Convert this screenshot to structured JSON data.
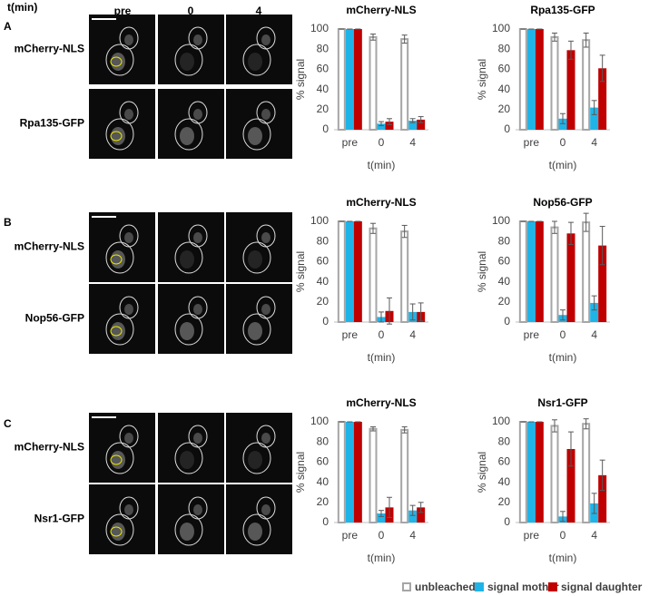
{
  "image_header": {
    "time_label": "t(min)",
    "columns": [
      "pre",
      "0",
      "4"
    ]
  },
  "panels": [
    {
      "label": "A",
      "row_labels": [
        "mCherry-NLS",
        "Rpa135-GFP"
      ]
    },
    {
      "label": "B",
      "row_labels": [
        "mCherry-NLS",
        "Nop56-GFP"
      ]
    },
    {
      "label": "C",
      "row_labels": [
        "mCherry-NLS",
        "Nsr1-GFP"
      ]
    }
  ],
  "chart_data": [
    {
      "type": "bar",
      "title": "mCherry-NLS",
      "categories": [
        "pre",
        "0",
        "4"
      ],
      "xlabel": "t(min)",
      "ylabel": "% signal",
      "ylim": [
        0,
        100
      ],
      "yticks": [
        0,
        20,
        40,
        60,
        80,
        100
      ],
      "series": [
        {
          "name": "unbleached",
          "color": "#a6a6a6",
          "style": "outline",
          "values": [
            100,
            92,
            90
          ],
          "errors": [
            0,
            3,
            4
          ]
        },
        {
          "name": "signal mother",
          "color": "#1fb4e8",
          "values": [
            100,
            6,
            9
          ],
          "errors": [
            0,
            2,
            2
          ]
        },
        {
          "name": "signal daughter",
          "color": "#c00000",
          "values": [
            100,
            8,
            10
          ],
          "errors": [
            0,
            3,
            3
          ]
        }
      ]
    },
    {
      "type": "bar",
      "title": "Rpa135-GFP",
      "categories": [
        "pre",
        "0",
        "4"
      ],
      "xlabel": "t(min)",
      "ylabel": "% signal",
      "ylim": [
        0,
        100
      ],
      "yticks": [
        0,
        20,
        40,
        60,
        80,
        100
      ],
      "series": [
        {
          "name": "unbleached",
          "color": "#a6a6a6",
          "style": "outline",
          "values": [
            100,
            92,
            89
          ],
          "errors": [
            0,
            4,
            7
          ]
        },
        {
          "name": "signal mother",
          "color": "#1fb4e8",
          "values": [
            100,
            11,
            22
          ],
          "errors": [
            0,
            5,
            7
          ]
        },
        {
          "name": "signal daughter",
          "color": "#c00000",
          "values": [
            100,
            79,
            61
          ],
          "errors": [
            0,
            9,
            13
          ]
        }
      ]
    },
    {
      "type": "bar",
      "title": "mCherry-NLS",
      "categories": [
        "pre",
        "0",
        "4"
      ],
      "xlabel": "t(min)",
      "ylabel": "% signal",
      "ylim": [
        0,
        100
      ],
      "yticks": [
        0,
        20,
        40,
        60,
        80,
        100
      ],
      "series": [
        {
          "name": "unbleached",
          "color": "#a6a6a6",
          "style": "outline",
          "values": [
            100,
            93,
            90
          ],
          "errors": [
            0,
            5,
            6
          ]
        },
        {
          "name": "signal mother",
          "color": "#1fb4e8",
          "values": [
            100,
            5,
            10
          ],
          "errors": [
            0,
            5,
            8
          ]
        },
        {
          "name": "signal daughter",
          "color": "#c00000",
          "values": [
            100,
            11,
            10
          ],
          "errors": [
            0,
            13,
            9
          ]
        }
      ]
    },
    {
      "type": "bar",
      "title": "Nop56-GFP",
      "categories": [
        "pre",
        "0",
        "4"
      ],
      "xlabel": "t(min)",
      "ylabel": "% signal",
      "ylim": [
        0,
        100
      ],
      "yticks": [
        0,
        20,
        40,
        60,
        80,
        100
      ],
      "series": [
        {
          "name": "unbleached",
          "color": "#a6a6a6",
          "style": "outline",
          "values": [
            100,
            94,
            99
          ],
          "errors": [
            0,
            6,
            9
          ]
        },
        {
          "name": "signal mother",
          "color": "#1fb4e8",
          "values": [
            100,
            7,
            19
          ],
          "errors": [
            0,
            5,
            7
          ]
        },
        {
          "name": "signal daughter",
          "color": "#c00000",
          "values": [
            100,
            88,
            76
          ],
          "errors": [
            0,
            11,
            19
          ]
        }
      ]
    },
    {
      "type": "bar",
      "title": "mCherry-NLS",
      "categories": [
        "pre",
        "0",
        "4"
      ],
      "xlabel": "t(min)",
      "ylabel": "% signal",
      "ylim": [
        0,
        100
      ],
      "yticks": [
        0,
        20,
        40,
        60,
        80,
        100
      ],
      "series": [
        {
          "name": "unbleached",
          "color": "#a6a6a6",
          "style": "outline",
          "values": [
            100,
            93,
            92
          ],
          "errors": [
            0,
            2,
            3
          ]
        },
        {
          "name": "signal mother",
          "color": "#1fb4e8",
          "values": [
            100,
            9,
            12
          ],
          "errors": [
            0,
            3,
            5
          ]
        },
        {
          "name": "signal daughter",
          "color": "#c00000",
          "values": [
            100,
            15,
            15
          ],
          "errors": [
            0,
            10,
            5
          ]
        }
      ]
    },
    {
      "type": "bar",
      "title": "Nsr1-GFP",
      "categories": [
        "pre",
        "0",
        "4"
      ],
      "xlabel": "t(min)",
      "ylabel": "% signal",
      "ylim": [
        0,
        100
      ],
      "yticks": [
        0,
        20,
        40,
        60,
        80,
        100
      ],
      "legend": "bottom",
      "series": [
        {
          "name": "unbleached",
          "color": "#a6a6a6",
          "style": "outline",
          "values": [
            100,
            96,
            98
          ],
          "errors": [
            0,
            6,
            5
          ]
        },
        {
          "name": "signal mother",
          "color": "#1fb4e8",
          "values": [
            100,
            6,
            19
          ],
          "errors": [
            0,
            5,
            10
          ]
        },
        {
          "name": "signal daughter",
          "color": "#c00000",
          "values": [
            100,
            73,
            47
          ],
          "errors": [
            0,
            17,
            15
          ]
        }
      ]
    }
  ]
}
